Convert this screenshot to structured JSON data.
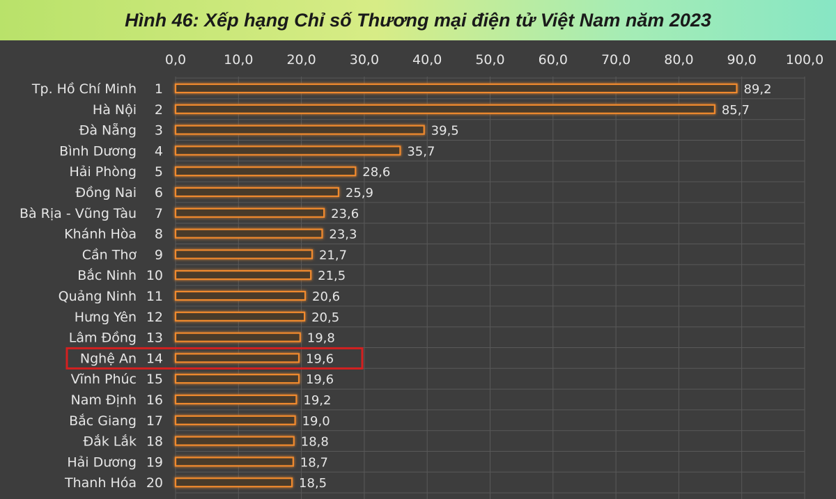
{
  "chart_data": {
    "type": "bar",
    "orientation": "horizontal",
    "title": "Hình 46: Xếp hạng Chỉ số Thương mại điện tử Việt Nam năm 2023",
    "xlim": [
      0,
      100
    ],
    "x_ticks": [
      "0,0",
      "10,0",
      "20,0",
      "30,0",
      "40,0",
      "50,0",
      "60,0",
      "70,0",
      "80,0",
      "90,0",
      "100,0"
    ],
    "x_tick_values": [
      0,
      10,
      20,
      30,
      40,
      50,
      60,
      70,
      80,
      90,
      100
    ],
    "categories": [
      "Tp. Hồ Chí Minh",
      "Hà Nội",
      "Đà Nẵng",
      "Bình Dương",
      "Hải Phòng",
      "Đồng Nai",
      "Bà Rịa - Vũng Tàu",
      "Khánh Hòa",
      "Cần Thơ",
      "Bắc Ninh",
      "Quảng Ninh",
      "Hưng Yên",
      "Lâm Đồng",
      "Nghệ An",
      "Vĩnh Phúc",
      "Nam Định",
      "Bắc Giang",
      "Đắk Lắk",
      "Hải Dương",
      "Thanh Hóa"
    ],
    "ranks": [
      "1",
      "2",
      "3",
      "4",
      "5",
      "6",
      "7",
      "8",
      "9",
      "10",
      "11",
      "12",
      "13",
      "14",
      "15",
      "16",
      "17",
      "18",
      "19",
      "20"
    ],
    "values": [
      89.2,
      85.7,
      39.5,
      35.7,
      28.6,
      25.9,
      23.6,
      23.3,
      21.7,
      21.5,
      20.6,
      20.5,
      19.8,
      19.6,
      19.6,
      19.2,
      19.0,
      18.8,
      18.7,
      18.5
    ],
    "value_labels": [
      "89,2",
      "85,7",
      "39,5",
      "35,7",
      "28,6",
      "25,9",
      "23,6",
      "23,3",
      "21,7",
      "21,5",
      "20,6",
      "20,5",
      "19,8",
      "19,6",
      "19,6",
      "19,2",
      "19,0",
      "18,8",
      "18,7",
      "18,5"
    ],
    "highlight_index": 13,
    "grid": true,
    "colors": {
      "bar_fill": "#4a3a2c",
      "bar_edge": "#f08a2e",
      "highlight_box": "#d42020",
      "background": "#3d3d3d",
      "grid": "#595959",
      "text": "#e6e6e6"
    }
  }
}
